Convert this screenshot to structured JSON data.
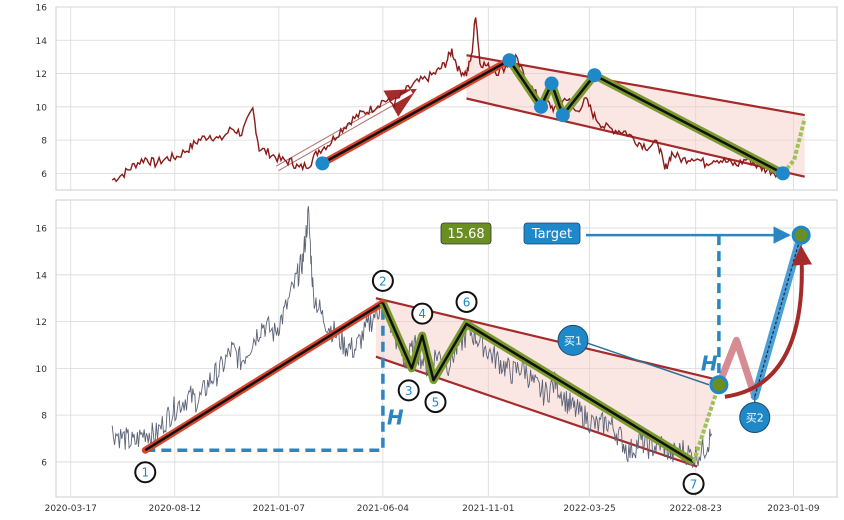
{
  "chart_data": [
    {
      "type": "line",
      "panel": "top",
      "ylim": [
        5,
        16
      ],
      "yticks": [
        6,
        8,
        10,
        12,
        14,
        16
      ],
      "grid": true,
      "series": [
        {
          "values": [
            [
              "2020-05-15",
              5.6
            ],
            [
              "2020-06-01",
              6.0
            ],
            [
              "2020-06-15",
              6.5
            ],
            [
              "2020-07-01",
              6.9
            ],
            [
              "2020-07-15",
              6.6
            ],
            [
              "2020-08-01",
              6.9
            ],
            [
              "2020-08-15",
              7.0
            ],
            [
              "2020-09-01",
              7.5
            ],
            [
              "2020-09-15",
              8.0
            ],
            [
              "2020-10-01",
              8.3
            ],
            [
              "2020-10-15",
              8.0
            ],
            [
              "2020-11-01",
              8.7
            ],
            [
              "2020-11-15",
              8.4
            ],
            [
              "2020-12-01",
              9.8
            ],
            [
              "2020-12-10",
              7.5
            ],
            [
              "2020-12-25",
              7.2
            ],
            [
              "2021-01-10",
              6.8
            ],
            [
              "2021-01-25",
              6.7
            ],
            [
              "2021-02-05",
              6.3
            ],
            [
              "2021-02-20",
              6.6
            ],
            [
              "2021-03-05",
              7.4
            ],
            [
              "2021-03-20",
              7.8
            ],
            [
              "2021-04-05",
              8.6
            ],
            [
              "2021-04-20",
              9.2
            ],
            [
              "2021-05-05",
              9.6
            ],
            [
              "2021-05-20",
              9.9
            ],
            [
              "2021-06-05",
              10.4
            ],
            [
              "2021-06-20",
              10.2
            ],
            [
              "2021-07-05",
              10.9
            ],
            [
              "2021-07-20",
              11.4
            ],
            [
              "2021-08-05",
              11.7
            ],
            [
              "2021-08-20",
              12.1
            ],
            [
              "2021-09-01",
              12.6
            ],
            [
              "2021-09-10",
              13.4
            ],
            [
              "2021-09-20",
              12.2
            ],
            [
              "2021-10-01",
              12.0
            ],
            [
              "2021-10-08",
              13.0
            ],
            [
              "2021-10-14",
              15.6
            ],
            [
              "2021-10-20",
              12.7
            ],
            [
              "2021-11-01",
              12.4
            ],
            [
              "2021-11-15",
              12.1
            ],
            [
              "2021-12-01",
              12.6
            ],
            [
              "2021-12-10",
              12.9
            ],
            [
              "2021-12-25",
              11.6
            ],
            [
              "2022-01-10",
              10.6
            ],
            [
              "2022-01-25",
              10.2
            ],
            [
              "2022-02-05",
              9.8
            ],
            [
              "2022-02-20",
              10.6
            ],
            [
              "2022-03-05",
              9.7
            ],
            [
              "2022-03-20",
              10.4
            ],
            [
              "2022-04-01",
              9.4
            ],
            [
              "2022-04-15",
              8.8
            ],
            [
              "2022-05-01",
              8.6
            ],
            [
              "2022-05-15",
              8.5
            ],
            [
              "2022-06-01",
              7.9
            ],
            [
              "2022-06-15",
              7.6
            ],
            [
              "2022-07-01",
              7.8
            ],
            [
              "2022-07-10",
              6.2
            ],
            [
              "2022-07-20",
              7.2
            ],
            [
              "2022-08-05",
              6.8
            ],
            [
              "2022-08-20",
              7.0
            ],
            [
              "2022-09-05",
              6.6
            ],
            [
              "2022-09-20",
              6.9
            ],
            [
              "2022-10-05",
              6.7
            ],
            [
              "2022-10-20",
              6.5
            ],
            [
              "2022-11-05",
              6.9
            ],
            [
              "2022-11-20",
              6.4
            ],
            [
              "2022-12-05",
              6.2
            ],
            [
              "2022-12-20",
              6.0
            ]
          ]
        }
      ],
      "overlays": {
        "channel_upper": [
          [
            "2021-10-01",
            13.1
          ],
          [
            "2023-01-25",
            9.5
          ]
        ],
        "channel_lower": [
          [
            "2021-10-01",
            10.5
          ],
          [
            "2023-01-25",
            5.8
          ]
        ],
        "trend_up": [
          [
            "2021-03-10",
            6.6
          ],
          [
            "2021-12-01",
            12.8
          ]
        ],
        "trend_up_arrow": [
          [
            "2021-01-05",
            6.3
          ],
          [
            "2021-07-15",
            10.9
          ]
        ],
        "zigzag": [
          [
            "2021-12-01",
            12.8
          ],
          [
            "2022-01-15",
            10.0
          ],
          [
            "2022-01-30",
            11.4
          ],
          [
            "2022-02-15",
            9.5
          ],
          [
            "2022-04-01",
            11.9
          ],
          [
            "2022-12-25",
            6.0
          ],
          [
            "2023-01-10",
            6.8
          ],
          [
            "2023-01-25",
            9.3
          ]
        ],
        "markers": [
          [
            "2021-03-10",
            6.6
          ],
          [
            "2021-12-01",
            12.8
          ],
          [
            "2022-01-15",
            10.0
          ],
          [
            "2022-01-30",
            11.4
          ],
          [
            "2022-02-15",
            9.5
          ],
          [
            "2022-04-01",
            11.9
          ],
          [
            "2022-12-25",
            6.0
          ]
        ]
      }
    },
    {
      "type": "line",
      "panel": "bottom",
      "ylim": [
        4.5,
        17.2
      ],
      "yticks": [
        6,
        8,
        10,
        12,
        14,
        16
      ],
      "xticks": [
        "2020-03-17",
        "2020-08-12",
        "2021-01-07",
        "2021-06-04",
        "2021-11-01",
        "2022-03-25",
        "2022-08-23",
        "2023-01-09"
      ],
      "grid": true,
      "series": [
        {
          "values": [
            [
              "2020-05-15",
              7.3
            ],
            [
              "2020-06-01",
              7.0
            ],
            [
              "2020-06-15",
              6.8
            ],
            [
              "2020-07-01",
              7.3
            ],
            [
              "2020-07-15",
              7.1
            ],
            [
              "2020-08-01",
              7.9
            ],
            [
              "2020-08-15",
              8.4
            ],
            [
              "2020-09-01",
              8.8
            ],
            [
              "2020-09-15",
              8.6
            ],
            [
              "2020-10-01",
              9.5
            ],
            [
              "2020-10-15",
              9.9
            ],
            [
              "2020-11-01",
              10.8
            ],
            [
              "2020-11-15",
              10.3
            ],
            [
              "2020-12-01",
              11.2
            ],
            [
              "2020-12-15",
              11.9
            ],
            [
              "2021-01-01",
              11.5
            ],
            [
              "2021-01-15",
              12.4
            ],
            [
              "2021-02-01",
              13.8
            ],
            [
              "2021-02-10",
              14.6
            ],
            [
              "2021-02-18",
              16.6
            ],
            [
              "2021-02-25",
              13.2
            ],
            [
              "2021-03-10",
              12.2
            ],
            [
              "2021-03-25",
              11.6
            ],
            [
              "2021-04-10",
              11.0
            ],
            [
              "2021-04-25",
              10.8
            ],
            [
              "2021-05-10",
              11.6
            ],
            [
              "2021-05-25",
              12.4
            ],
            [
              "2021-06-04",
              12.7
            ],
            [
              "2021-06-20",
              11.5
            ],
            [
              "2021-07-05",
              10.3
            ],
            [
              "2021-07-20",
              10.9
            ],
            [
              "2021-08-05",
              10.1
            ],
            [
              "2021-08-20",
              10.6
            ],
            [
              "2021-09-05",
              10.2
            ],
            [
              "2021-09-20",
              11.0
            ],
            [
              "2021-10-05",
              11.6
            ],
            [
              "2021-10-20",
              11.2
            ],
            [
              "2021-11-05",
              10.6
            ],
            [
              "2021-11-20",
              10.2
            ],
            [
              "2021-12-05",
              9.8
            ],
            [
              "2021-12-20",
              10.1
            ],
            [
              "2022-01-05",
              9.3
            ],
            [
              "2022-01-20",
              8.9
            ],
            [
              "2022-02-05",
              9.4
            ],
            [
              "2022-02-20",
              8.6
            ],
            [
              "2022-03-05",
              8.2
            ],
            [
              "2022-03-20",
              7.9
            ],
            [
              "2022-04-05",
              7.5
            ],
            [
              "2022-04-20",
              7.7
            ],
            [
              "2022-05-05",
              7.2
            ],
            [
              "2022-05-20",
              6.4
            ],
            [
              "2022-06-05",
              6.9
            ],
            [
              "2022-06-20",
              6.6
            ],
            [
              "2022-07-05",
              6.8
            ],
            [
              "2022-07-20",
              6.3
            ],
            [
              "2022-08-05",
              6.5
            ],
            [
              "2022-08-20",
              6.2
            ],
            [
              "2022-09-05",
              6.6
            ],
            [
              "2022-09-15",
              7.2
            ]
          ]
        }
      ],
      "overlays": {
        "channel_upper": [
          [
            "2021-05-25",
            13.0
          ],
          [
            "2022-09-25",
            9.5
          ]
        ],
        "channel_lower": [
          [
            "2021-05-25",
            10.5
          ],
          [
            "2022-08-25",
            5.8
          ]
        ],
        "trend_up": [
          [
            "2020-07-01",
            6.5
          ],
          [
            "2021-06-04",
            12.8
          ]
        ],
        "h_box": [
          [
            "2020-07-01",
            6.5
          ],
          [
            "2021-06-04",
            12.8
          ]
        ],
        "zigzag": [
          [
            "2021-06-04",
            12.8
          ],
          [
            "2021-07-15",
            10.0
          ],
          [
            "2021-07-30",
            11.4
          ],
          [
            "2021-08-15",
            9.5
          ],
          [
            "2021-10-01",
            11.9
          ],
          [
            "2022-08-20",
            6.0
          ],
          [
            "2022-09-25",
            9.3
          ]
        ],
        "pivot_points": [
          {
            "label": "1",
            "point": [
              "2020-07-01",
              6.5
            ],
            "pos": "below"
          },
          {
            "label": "2",
            "point": [
              "2021-06-04",
              12.8
            ],
            "pos": "above"
          },
          {
            "label": "3",
            "point": [
              "2021-07-15",
              10.0
            ],
            "pos": "below"
          },
          {
            "label": "4",
            "point": [
              "2021-07-30",
              11.4
            ],
            "pos": "above"
          },
          {
            "label": "5",
            "point": [
              "2021-08-15",
              9.5
            ],
            "pos": "below"
          },
          {
            "label": "6",
            "point": [
              "2021-10-01",
              11.9
            ],
            "pos": "above"
          },
          {
            "label": "7",
            "point": [
              "2022-08-20",
              6.0
            ],
            "pos": "below"
          }
        ],
        "projection": [
          [
            "2022-09-25",
            9.3
          ],
          [
            "2022-10-20",
            11.2
          ],
          [
            "2022-11-15",
            8.8
          ]
        ],
        "target_path": [
          [
            "2022-11-15",
            8.8
          ],
          [
            "2023-01-20",
            15.7
          ]
        ],
        "buy1_point": [
          "2022-09-25",
          9.3
        ],
        "buy2_point": [
          "2022-11-15",
          8.8
        ],
        "target_point": [
          "2023-01-20",
          15.7
        ]
      },
      "annotations": {
        "price_box": "15.68",
        "target_label": "Target",
        "buy1_label": "买1",
        "buy2_label": "买2",
        "h_label": "H",
        "h_label_right": "H"
      }
    }
  ]
}
